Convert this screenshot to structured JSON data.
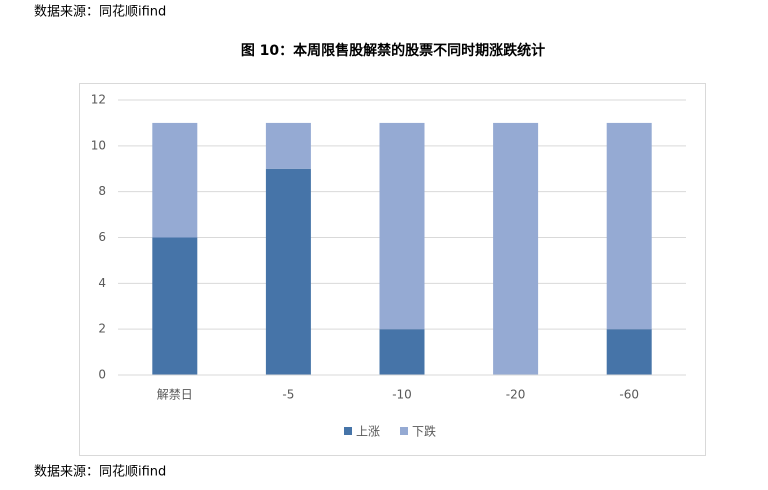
{
  "source": "数据来源：同花顺ifind",
  "chart_data": {
    "type": "stacked_bar",
    "title": "图 10：本周限售股解禁的股票不同时期涨跌统计",
    "categories": [
      "解禁日",
      "-5",
      "-10",
      "-20",
      "-60"
    ],
    "series": [
      {
        "name": "上涨",
        "color": "#4674a8",
        "values": [
          6,
          9,
          2,
          0,
          2
        ]
      },
      {
        "name": "下跌",
        "color": "#95aad3",
        "values": [
          5,
          2,
          9,
          11,
          9
        ]
      }
    ],
    "ylim": [
      0,
      12
    ],
    "yticks": [
      0,
      2,
      4,
      6,
      8,
      10,
      12
    ],
    "grid": true,
    "legend": "bottom"
  }
}
